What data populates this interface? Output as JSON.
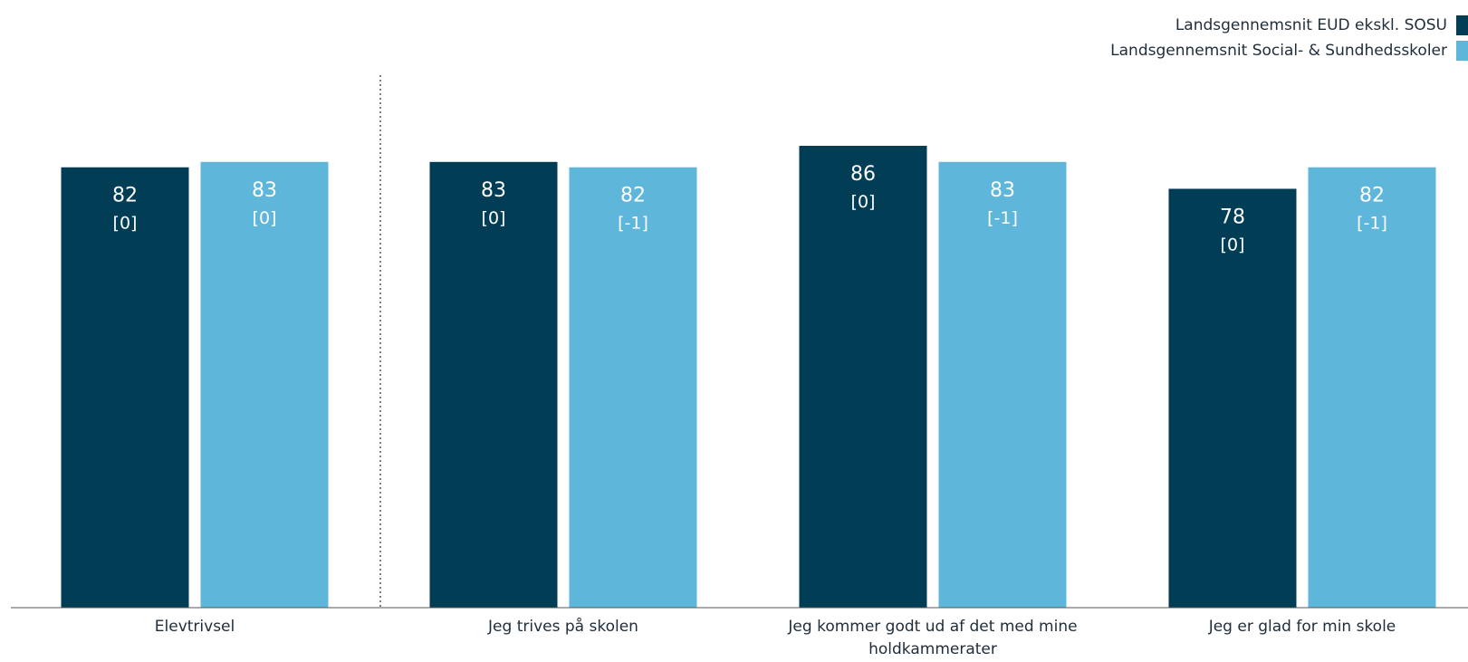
{
  "chart_data": {
    "type": "bar",
    "categories": [
      [
        "Elevtrivsel"
      ],
      [
        "Jeg trives på skolen"
      ],
      [
        "Jeg kommer godt ud af det med mine",
        "holdkammerater"
      ],
      [
        "Jeg er glad for min skole"
      ]
    ],
    "series": [
      {
        "name": "Landsgennemsnit EUD ekskl. SOSU",
        "color": "#023d56",
        "values": [
          82,
          83,
          86,
          78
        ],
        "changes": [
          "[0]",
          "[0]",
          "[0]",
          "[0]"
        ]
      },
      {
        "name": "Landsgennemsnit Social- & Sundhedsskoler",
        "color": "#5fb6db",
        "values": [
          83,
          82,
          83,
          82
        ],
        "changes": [
          "[0]",
          "[-1]",
          "[-1]",
          "[-1]"
        ]
      }
    ],
    "ylim": [
      0,
      100
    ],
    "grid": false,
    "legend_position": "top-right",
    "separator_after_category": 0
  }
}
